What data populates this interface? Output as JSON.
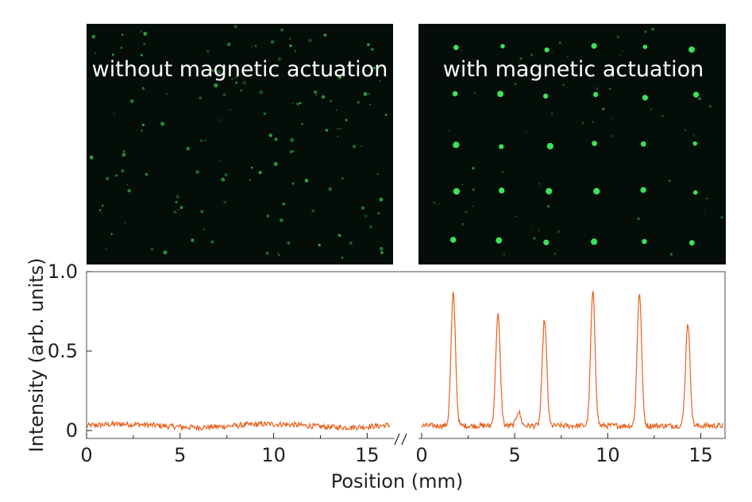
{
  "panels": [
    {
      "label": "without magnetic actuation"
    },
    {
      "label": "with magnetic actuation"
    }
  ],
  "colors": {
    "trace": "#e8601c",
    "micrograph_bg": "#050d08",
    "dot": "#39e35a",
    "axis": "#231f20"
  },
  "chart_data": {
    "type": "line",
    "xlabel": "Position (mm)",
    "ylabel": "Intensity (arb. units)",
    "ylim": [
      -0.05,
      1.0
    ],
    "yticks": [
      0,
      0.5,
      1.0
    ],
    "ytick_labels": [
      "0",
      "0.5",
      "1.0"
    ],
    "axis_break": "//",
    "segments": [
      {
        "xlim": [
          0,
          16.3
        ],
        "xticks": [
          0,
          5,
          10,
          15
        ],
        "xtick_labels": [
          "0",
          "5",
          "10",
          "15"
        ],
        "baseline": 0.03,
        "peaks": []
      },
      {
        "xlim": [
          0,
          16.3
        ],
        "xticks": [
          0,
          5,
          10,
          15
        ],
        "xtick_labels": [
          "0",
          "5",
          "10",
          "15"
        ],
        "baseline": 0.03,
        "peaks": [
          {
            "x": 1.7,
            "y": 0.86
          },
          {
            "x": 4.1,
            "y": 0.73
          },
          {
            "x": 5.2,
            "y": 0.12
          },
          {
            "x": 6.6,
            "y": 0.7
          },
          {
            "x": 9.2,
            "y": 0.87
          },
          {
            "x": 11.7,
            "y": 0.87
          },
          {
            "x": 14.3,
            "y": 0.68
          }
        ]
      }
    ]
  }
}
